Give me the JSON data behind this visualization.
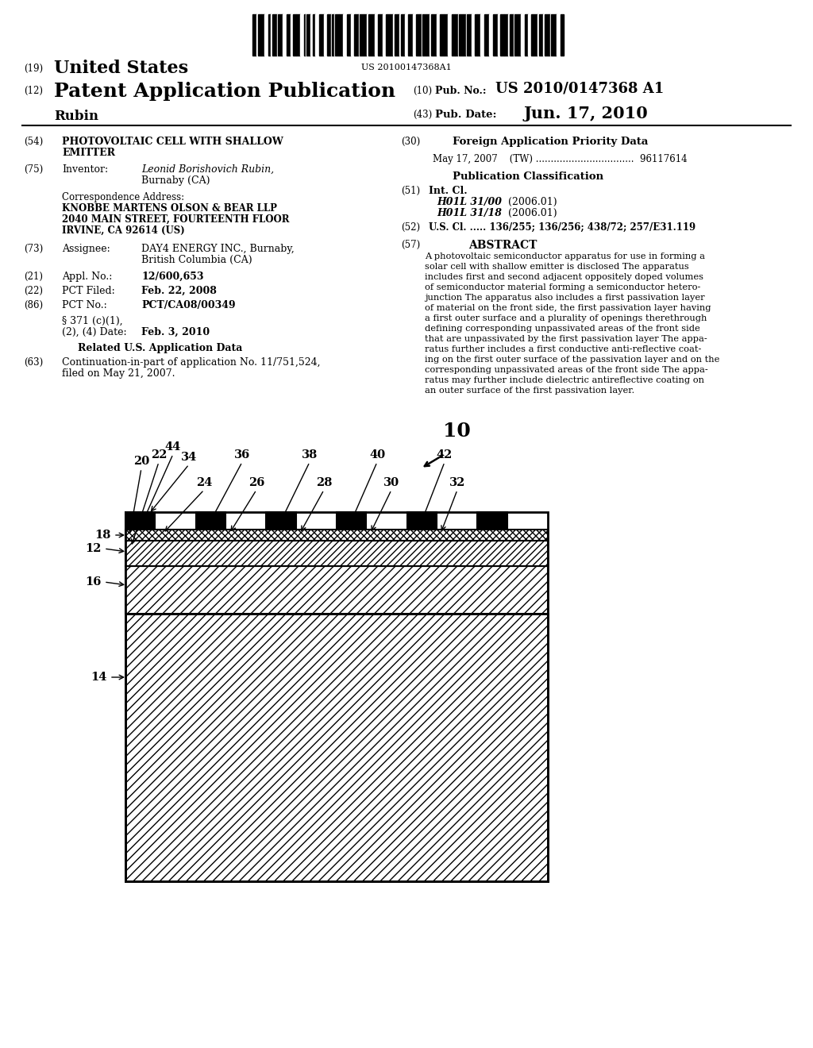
{
  "background_color": "#ffffff",
  "patent_number": "US 20100147368A1",
  "pub_number": "US 2010/0147368 A1",
  "pub_date": "Jun. 17, 2010",
  "inventor": "Leonid Borishovich Rubin,",
  "inventor2": "Burnaby (CA)",
  "assignee": "DAY4 ENERGY INC., Burnaby,",
  "assignee2": "British Columbia (CA)",
  "appl_no": "12/600,653",
  "pct_filed": "Feb. 22, 2008",
  "pct_no": "PCT/CA08/00349",
  "date_371": "Feb. 3, 2010",
  "foreign_priority": "May 17, 2007    (TW) .................................  96117614",
  "int_cl_1": "H01L 31/00",
  "int_cl_1_year": "(2006.01)",
  "int_cl_2": "H01L 31/18",
  "int_cl_2_year": "(2006.01)",
  "us_cl": "136/255; 136/256; 438/72; 257/E31.119",
  "correspondence_1": "KNOBBE MARTENS OLSON & BEAR LLP",
  "correspondence_2": "2040 MAIN STREET, FOURTEENTH FLOOR",
  "correspondence_3": "IRVINE, CA 92614 (US)",
  "continuation": "Continuation-in-part of application No. 11/751,524,",
  "continuation2": "filed on May 21, 2007.",
  "abstract_lines": [
    "A photovoltaic semiconductor apparatus for use in forming a",
    "solar cell with shallow emitter is disclosed The apparatus",
    "includes first and second adjacent oppositely doped volumes",
    "of semiconductor material forming a semiconductor hetero-",
    "junction The apparatus also includes a first passivation layer",
    "of material on the front side, the first passivation layer having",
    "a first outer surface and a plurality of openings therethrough",
    "defining corresponding unpassivated areas of the front side",
    "that are unpassivated by the first passivation layer The appa-",
    "ratus further includes a first conductive anti-reflective coat-",
    "ing on the first outer surface of the passivation layer and on the",
    "corresponding unpassivated areas of the front side The appa-",
    "ratus may further include dielectric antireflective coating on",
    "an outer surface of the first passivation layer."
  ]
}
